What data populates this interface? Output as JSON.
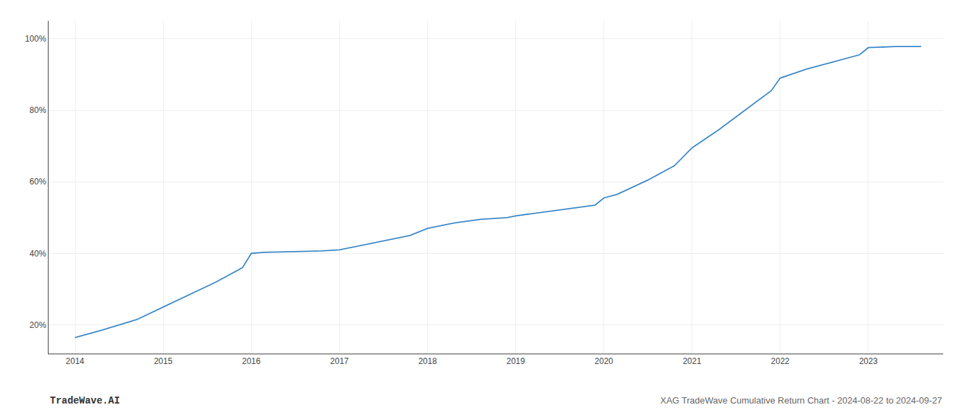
{
  "chart_data": {
    "type": "line",
    "x": [
      2014.0,
      2014.15,
      2014.3,
      2014.5,
      2014.7,
      2015.0,
      2015.3,
      2015.6,
      2015.9,
      2016.0,
      2016.1,
      2016.15,
      2016.5,
      2016.8,
      2017.0,
      2017.2,
      2017.5,
      2017.8,
      2018.0,
      2018.3,
      2018.6,
      2018.9,
      2019.0,
      2019.3,
      2019.6,
      2019.9,
      2020.0,
      2020.15,
      2020.5,
      2020.8,
      2021.0,
      2021.3,
      2021.6,
      2021.9,
      2022.0,
      2022.3,
      2022.6,
      2022.9,
      2023.0,
      2023.3,
      2023.6
    ],
    "values": [
      0.165,
      0.175,
      0.185,
      0.2,
      0.215,
      0.25,
      0.285,
      0.32,
      0.36,
      0.4,
      0.402,
      0.403,
      0.405,
      0.407,
      0.41,
      0.42,
      0.435,
      0.45,
      0.47,
      0.485,
      0.495,
      0.5,
      0.505,
      0.515,
      0.525,
      0.535,
      0.555,
      0.565,
      0.605,
      0.645,
      0.695,
      0.745,
      0.8,
      0.855,
      0.89,
      0.915,
      0.935,
      0.955,
      0.975,
      0.978,
      0.978
    ],
    "color": "#3a87c8",
    "xlim": [
      2013.7,
      2023.85
    ],
    "xticks": [
      2014,
      2015,
      2016,
      2017,
      2018,
      2019,
      2020,
      2021,
      2022,
      2023
    ],
    "ylim": [
      0.12,
      1.05
    ],
    "yticks": [
      {
        "value": 0.2,
        "label": "20%"
      },
      {
        "value": 0.4,
        "label": "40%"
      },
      {
        "value": 0.6,
        "label": "60%"
      },
      {
        "value": 0.8,
        "label": "80%"
      },
      {
        "value": 1.0,
        "label": "100%"
      }
    ],
    "grid": true,
    "annotations": [
      "TradeWave.AI",
      "XAG TradeWave Cumulative Return Chart - 2024-08-22 to 2024-09-27"
    ]
  }
}
